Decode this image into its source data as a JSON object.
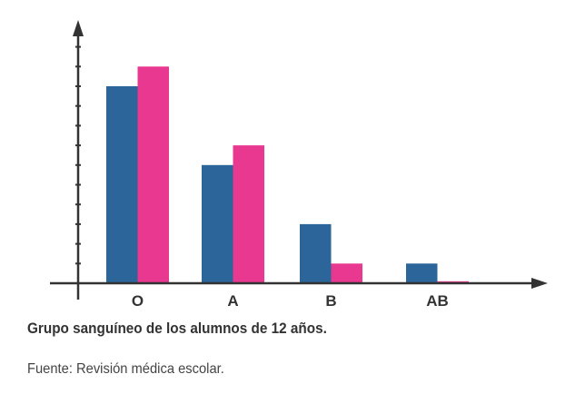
{
  "chart_data": {
    "type": "bar",
    "title": "",
    "caption": "Grupo sanguíneo de los alumnos de 12 años.",
    "source": "Fuente: Revisión médica escolar.",
    "categories": [
      "O",
      "A",
      "B",
      "AB"
    ],
    "series": [
      {
        "values": [
          10,
          6,
          3,
          1
        ],
        "color": "#2b6599"
      },
      {
        "values": [
          11,
          7,
          1,
          0.1
        ],
        "color": "#e8388f"
      }
    ],
    "ylim": [
      0,
      12
    ],
    "y_ticks": 12,
    "y_tick_labels": false,
    "grid": false,
    "legend": "none",
    "xlabel": "",
    "ylabel": ""
  }
}
